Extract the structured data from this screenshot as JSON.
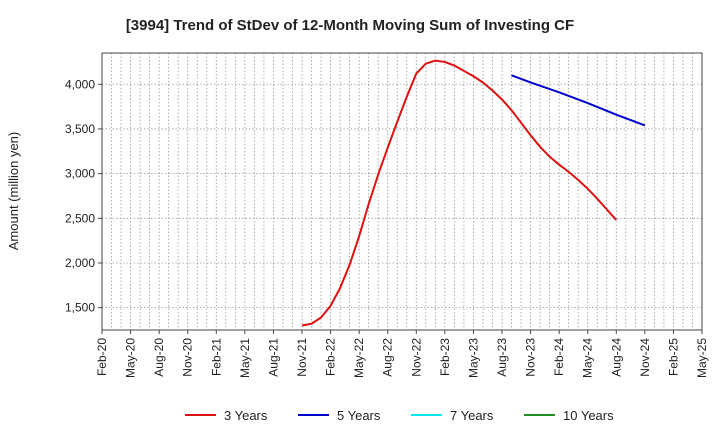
{
  "chart_data": {
    "type": "line",
    "title": "[3994]  Trend of StDev of 12-Month Moving Sum of Investing CF",
    "xlabel": "",
    "ylabel": "Amount (million yen)",
    "ylim": [
      1250,
      4350
    ],
    "yticks": [
      1500,
      2000,
      2500,
      3000,
      3500,
      4000
    ],
    "ytick_labels": [
      "1,500",
      "2,000",
      "2,500",
      "3,000",
      "3,500",
      "4,000"
    ],
    "xticks": [
      "Feb-20",
      "May-20",
      "Aug-20",
      "Nov-20",
      "Feb-21",
      "May-21",
      "Aug-21",
      "Nov-21",
      "Feb-22",
      "May-22",
      "Aug-22",
      "Nov-22",
      "Feb-23",
      "May-23",
      "Aug-23",
      "Nov-23",
      "Feb-24",
      "May-24",
      "Aug-24",
      "Nov-24",
      "Feb-25",
      "May-25"
    ],
    "grid": true,
    "legend_position": "bottom",
    "series": [
      {
        "name": "3 Years",
        "color": "#dd1111",
        "points": [
          [
            "Nov-21",
            1300
          ],
          [
            "Dec-21",
            1320
          ],
          [
            "Jan-22",
            1390
          ],
          [
            "Feb-22",
            1520
          ],
          [
            "Mar-22",
            1720
          ],
          [
            "Apr-22",
            1980
          ],
          [
            "May-22",
            2300
          ],
          [
            "Jun-22",
            2660
          ],
          [
            "Jul-22",
            2990
          ],
          [
            "Aug-22",
            3290
          ],
          [
            "Sep-22",
            3580
          ],
          [
            "Oct-22",
            3860
          ],
          [
            "Nov-22",
            4120
          ],
          [
            "Dec-22",
            4230
          ],
          [
            "Jan-23",
            4265
          ],
          [
            "Feb-23",
            4250
          ],
          [
            "Mar-23",
            4210
          ],
          [
            "Apr-23",
            4150
          ],
          [
            "May-23",
            4090
          ],
          [
            "Jun-23",
            4020
          ],
          [
            "Jul-23",
            3930
          ],
          [
            "Aug-23",
            3830
          ],
          [
            "Sep-23",
            3710
          ],
          [
            "Oct-23",
            3570
          ],
          [
            "Nov-23",
            3430
          ],
          [
            "Dec-23",
            3300
          ],
          [
            "Jan-24",
            3190
          ],
          [
            "Feb-24",
            3100
          ],
          [
            "Mar-24",
            3020
          ],
          [
            "Apr-24",
            2930
          ],
          [
            "May-24",
            2830
          ],
          [
            "Jun-24",
            2720
          ],
          [
            "Jul-24",
            2600
          ],
          [
            "Aug-24",
            2480
          ]
        ]
      },
      {
        "name": "5 Years",
        "color": "#0000cc",
        "points": [
          [
            "Sep-23",
            4100
          ],
          [
            "Nov-23",
            4020
          ],
          [
            "Feb-24",
            3910
          ],
          [
            "May-24",
            3790
          ],
          [
            "Aug-24",
            3660
          ],
          [
            "Nov-24",
            3540
          ]
        ]
      },
      {
        "name": "7 Years",
        "color": "#00e5ee",
        "points": []
      },
      {
        "name": "10 Years",
        "color": "#228b22",
        "points": []
      }
    ]
  }
}
